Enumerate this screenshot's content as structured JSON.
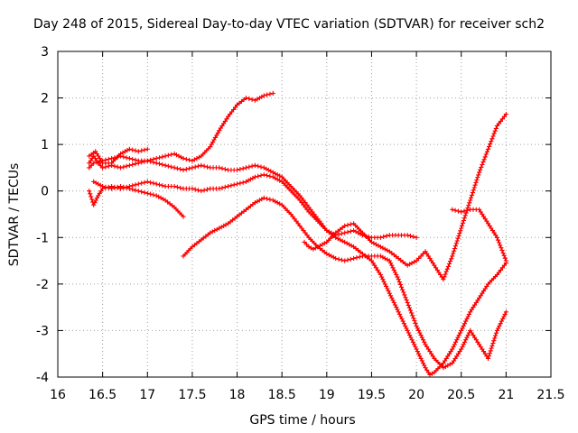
{
  "chart_data": {
    "type": "scatter",
    "title": "Day 248 of 2015, Sidereal Day-to-day VTEC variation (SDTVAR) for receiver sch2",
    "xlabel": "GPS time / hours",
    "ylabel": "SDTVAR / TECUs",
    "xlim": [
      16,
      21.5
    ],
    "ylim": [
      -4,
      3
    ],
    "xticks": [
      "16",
      "16.5",
      "17",
      "17.5",
      "18",
      "18.5",
      "19",
      "19.5",
      "20",
      "20.5",
      "21",
      "21.5"
    ],
    "yticks": [
      "-4",
      "-3",
      "-2",
      "-1",
      "0",
      "1",
      "2",
      "3"
    ],
    "grid": true,
    "legend": "none",
    "marker": "plus",
    "color": "#ff0000",
    "series": [
      {
        "x": [
          16.35,
          16.4,
          16.45,
          16.5,
          16.6,
          16.7,
          16.8,
          16.9,
          17.0,
          17.1,
          17.2,
          17.3,
          17.4,
          17.5,
          17.6,
          17.7,
          17.8,
          17.9,
          18.0,
          18.1,
          18.2,
          18.3,
          18.4
        ],
        "y": [
          0.6,
          0.75,
          0.6,
          0.5,
          0.55,
          0.5,
          0.55,
          0.6,
          0.65,
          0.7,
          0.75,
          0.8,
          0.7,
          0.65,
          0.75,
          0.95,
          1.3,
          1.6,
          1.85,
          2.0,
          1.95,
          2.05,
          2.1
        ]
      },
      {
        "x": [
          16.35,
          16.4,
          16.5,
          16.6,
          16.7,
          16.8,
          16.9,
          17.0,
          17.1,
          17.2,
          17.3,
          17.4,
          17.5,
          17.6,
          17.7,
          17.8,
          17.9,
          18.0,
          18.1,
          18.2,
          18.3,
          18.4,
          18.5,
          18.6,
          18.7,
          18.8,
          18.9,
          19.0,
          19.1,
          19.2,
          19.3,
          19.4,
          19.5,
          19.6,
          19.7,
          19.8,
          19.9,
          20.0
        ],
        "y": [
          0.5,
          0.6,
          0.65,
          0.7,
          0.75,
          0.7,
          0.65,
          0.65,
          0.6,
          0.55,
          0.5,
          0.45,
          0.5,
          0.55,
          0.5,
          0.5,
          0.45,
          0.45,
          0.5,
          0.55,
          0.5,
          0.4,
          0.3,
          0.1,
          -0.1,
          -0.35,
          -0.6,
          -0.85,
          -0.95,
          -0.9,
          -0.85,
          -0.95,
          -1.0,
          -1.0,
          -0.95,
          -0.95,
          -0.95,
          -1.0
        ]
      },
      {
        "x": [
          16.4,
          16.5,
          16.6,
          16.7,
          16.8,
          16.9,
          17.0,
          17.1,
          17.2,
          17.3,
          17.4
        ],
        "y": [
          0.2,
          0.1,
          0.05,
          0.1,
          0.05,
          0.0,
          -0.05,
          -0.1,
          -0.2,
          -0.35,
          -0.55
        ]
      },
      {
        "x": [
          16.35,
          16.42,
          16.5,
          16.6,
          16.7,
          16.8,
          16.9,
          17.0
        ],
        "y": [
          0.75,
          0.85,
          0.6,
          0.6,
          0.8,
          0.9,
          0.85,
          0.9
        ]
      },
      {
        "x": [
          16.35,
          16.4,
          16.45,
          16.5,
          16.6,
          16.7,
          16.8,
          16.9,
          17.0,
          17.1,
          17.2,
          17.3,
          17.4,
          17.5,
          17.6,
          17.7,
          17.8,
          17.9,
          18.0,
          18.1,
          18.2,
          18.3,
          18.4,
          18.5,
          18.6,
          18.7,
          18.8,
          18.9,
          19.0,
          19.1,
          19.2,
          19.3,
          19.4,
          19.5,
          19.6,
          19.7,
          19.8,
          19.9,
          20.0,
          20.05,
          20.1,
          20.15,
          20.2,
          20.3,
          20.4,
          20.5,
          20.6,
          20.7,
          20.8,
          20.9,
          21.0
        ],
        "y": [
          0.0,
          -0.3,
          -0.1,
          0.05,
          0.1,
          0.05,
          0.1,
          0.15,
          0.2,
          0.15,
          0.1,
          0.1,
          0.05,
          0.05,
          0.0,
          0.05,
          0.05,
          0.1,
          0.15,
          0.2,
          0.3,
          0.35,
          0.3,
          0.2,
          0.0,
          -0.2,
          -0.45,
          -0.65,
          -0.85,
          -1.0,
          -1.1,
          -1.2,
          -1.35,
          -1.5,
          -1.8,
          -2.2,
          -2.6,
          -3.0,
          -3.4,
          -3.6,
          -3.8,
          -3.95,
          -3.9,
          -3.7,
          -3.4,
          -3.0,
          -2.6,
          -2.3,
          -2.0,
          -1.8,
          -1.55
        ]
      },
      {
        "x": [
          17.4,
          17.5,
          17.6,
          17.7,
          17.8,
          17.9,
          18.0,
          18.1,
          18.2,
          18.3,
          18.4,
          18.5,
          18.6,
          18.7,
          18.8,
          18.9,
          19.0,
          19.1,
          19.2,
          19.3,
          19.4,
          19.5,
          19.6,
          19.7,
          19.8,
          19.9,
          20.0,
          20.1,
          20.2,
          20.3,
          20.4,
          20.5,
          20.55,
          20.6,
          20.7,
          20.8,
          20.9,
          21.0
        ],
        "y": [
          -1.4,
          -1.2,
          -1.05,
          -0.9,
          -0.8,
          -0.7,
          -0.55,
          -0.4,
          -0.25,
          -0.15,
          -0.2,
          -0.3,
          -0.5,
          -0.75,
          -1.0,
          -1.2,
          -1.35,
          -1.45,
          -1.5,
          -1.45,
          -1.4,
          -1.4,
          -1.4,
          -1.5,
          -1.9,
          -2.4,
          -2.9,
          -3.3,
          -3.6,
          -3.8,
          -3.7,
          -3.4,
          -3.2,
          -3.0,
          -3.3,
          -3.6,
          -3.0,
          -2.6
        ]
      },
      {
        "x": [
          18.75,
          18.8,
          18.85,
          18.9,
          19.0,
          19.1,
          19.2,
          19.3,
          19.4,
          19.5,
          19.6,
          19.7,
          19.8,
          19.9,
          20.0,
          20.05,
          20.1,
          20.15,
          20.2,
          20.3,
          20.4,
          20.5,
          20.6,
          20.7,
          20.8,
          20.9,
          21.0
        ],
        "y": [
          -1.1,
          -1.2,
          -1.25,
          -1.2,
          -1.1,
          -0.9,
          -0.75,
          -0.7,
          -0.9,
          -1.1,
          -1.2,
          -1.3,
          -1.45,
          -1.6,
          -1.5,
          -1.4,
          -1.3,
          -1.45,
          -1.6,
          -1.9,
          -1.4,
          -0.8,
          -0.2,
          0.4,
          0.9,
          1.4,
          1.65
        ]
      },
      {
        "x": [
          20.4,
          20.5,
          20.6,
          20.7,
          20.8,
          20.9,
          21.0
        ],
        "y": [
          -0.4,
          -0.45,
          -0.4,
          -0.4,
          -0.7,
          -1.0,
          -1.5
        ]
      }
    ]
  }
}
